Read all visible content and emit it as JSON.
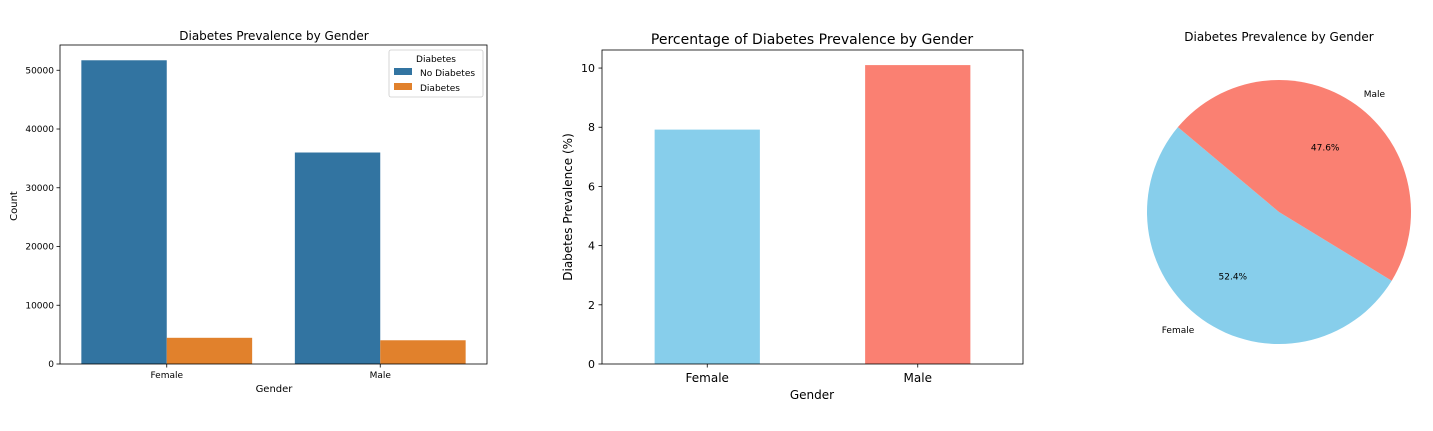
{
  "colors": {
    "no_diabetes": "#3274a1",
    "diabetes": "#e1812c",
    "female": "#87ceeb",
    "male": "#fa8072"
  },
  "chart_data": [
    {
      "type": "bar",
      "title": "Diabetes Prevalence by Gender",
      "xlabel": "Gender",
      "ylabel": "Count",
      "categories": [
        "Female",
        "Male"
      ],
      "series": [
        {
          "name": "No Diabetes",
          "values": [
            51700,
            36000
          ]
        },
        {
          "name": "Diabetes",
          "values": [
            4460,
            4040
          ]
        }
      ],
      "ylim": [
        0,
        54300
      ],
      "yticks": [
        0,
        10000,
        20000,
        30000,
        40000,
        50000
      ],
      "legend": {
        "title": "Diabetes",
        "placement": "top-right"
      },
      "grid": false
    },
    {
      "type": "bar",
      "title": "Percentage of Diabetes Prevalence by Gender",
      "xlabel": "Gender",
      "ylabel": "Diabetes Prevalence (%)",
      "categories": [
        "Female",
        "Male"
      ],
      "values": [
        7.92,
        10.1
      ],
      "ylim": [
        0,
        10.61
      ],
      "yticks": [
        0,
        2,
        4,
        6,
        8,
        10
      ],
      "grid": false
    },
    {
      "type": "pie",
      "title": "Diabetes Prevalence by Gender",
      "labels": [
        "Female",
        "Male"
      ],
      "values": [
        52.4,
        47.6
      ],
      "autopct_labels": [
        "52.4%",
        "47.6%"
      ],
      "startangle": 140
    }
  ]
}
